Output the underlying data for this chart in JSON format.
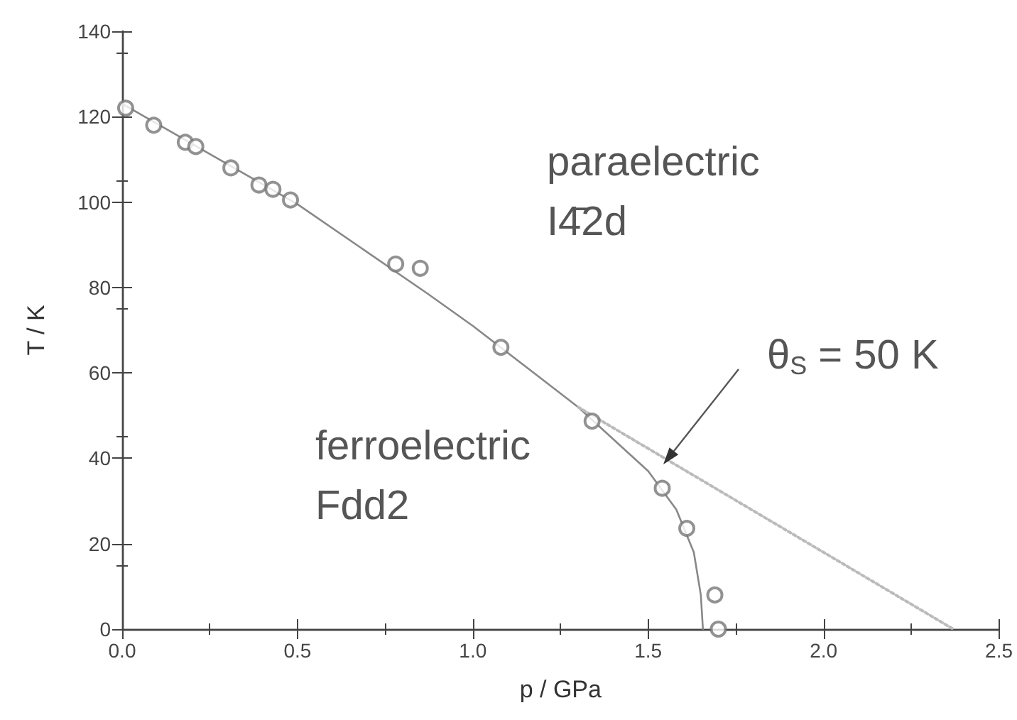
{
  "chart_data": {
    "type": "scatter",
    "xlabel": "p / GPa",
    "ylabel": "T / K",
    "xlim": [
      0,
      2.5
    ],
    "xticks": [
      {
        "value": 0,
        "label": "0.0"
      },
      {
        "value": 0.5,
        "label": "0.5"
      },
      {
        "value": 1,
        "label": "1.0"
      },
      {
        "value": 1.5,
        "label": "1.5"
      },
      {
        "value": 2,
        "label": "2.0"
      },
      {
        "value": 2.5,
        "label": "2.5"
      }
    ],
    "ylim": [
      0,
      140
    ],
    "yticks": [
      0,
      20,
      40,
      60,
      80,
      100,
      120,
      140
    ],
    "grid": false,
    "series": [
      {
        "marker": "circle",
        "color": "#777777",
        "x": [
          0.01,
          0.09,
          0.18,
          0.21,
          0.31,
          0.39,
          0.43,
          0.48,
          0.78,
          0.85,
          1.08,
          1.34,
          1.54,
          1.61,
          1.69,
          1.7
        ],
        "values": [
          122,
          118,
          114,
          113,
          108,
          104,
          103,
          100.5,
          85.5,
          84.5,
          66,
          48.7,
          33,
          23.6,
          8,
          0
        ]
      },
      {
        "type": "line",
        "marker": "none",
        "line_style": "solid",
        "color": "#888888",
        "x": [
          0,
          0.5,
          0.87,
          1.0,
          1.3,
          1.5,
          1.58,
          1.63,
          1.65,
          1.656
        ],
        "values": [
          123,
          99.5,
          78.6,
          71,
          52,
          37,
          28,
          18,
          8,
          0
        ]
      },
      {
        "type": "line",
        "marker": "none",
        "line_style": "dotted",
        "color": "#bbbbbb",
        "x": [
          1.3,
          2.37
        ],
        "values": [
          52,
          0
        ]
      }
    ],
    "annotations": [
      "paraelectric",
      "I4̄2d",
      "ferroelectric",
      "Fdd2",
      "θ$_{S}$ = 50 K"
    ]
  }
}
